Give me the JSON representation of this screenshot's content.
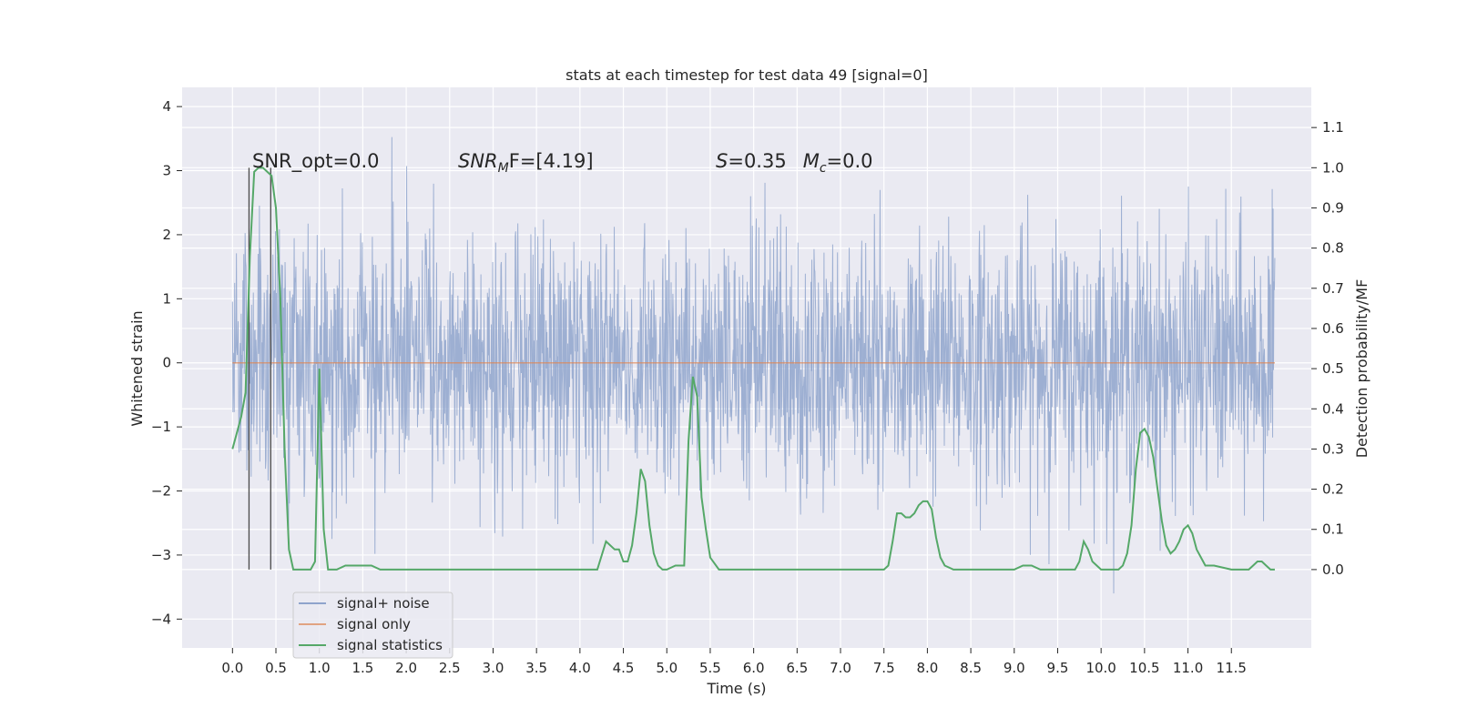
{
  "chart_data": {
    "type": "line",
    "title": "stats at each timestep for test data 49 [signal=0]",
    "xlabel": "Time (s)",
    "ylabel_left": "Whitened strain",
    "ylabel_right": "Detection probability/MF",
    "xlim": [
      -0.58,
      12.42
    ],
    "ylim_left": [
      -4.45,
      4.3
    ],
    "ylim_right": [
      -0.195,
      1.2
    ],
    "grid": true,
    "legend_position": "lower-left",
    "x_ticks": [
      "0.0",
      "0.5",
      "1.0",
      "1.5",
      "2.0",
      "2.5",
      "3.0",
      "3.5",
      "4.0",
      "4.5",
      "5.0",
      "5.5",
      "6.0",
      "6.5",
      "7.0",
      "7.5",
      "8.0",
      "8.5",
      "9.0",
      "9.5",
      "10.0",
      "10.5",
      "11.0",
      "11.5"
    ],
    "y_ticks_left": [
      "4",
      "3",
      "2",
      "1",
      "0",
      "−1",
      "−2",
      "−3",
      "−4"
    ],
    "y_ticks_right": [
      "1.1",
      "1.0",
      "0.9",
      "0.8",
      "0.7",
      "0.6",
      "0.5",
      "0.4",
      "0.3",
      "0.2",
      "0.1",
      "0.0"
    ],
    "annotations": {
      "snr_opt": "SNR_opt=0.0",
      "snr_mf": "SNR",
      "snr_mf_sub": "M",
      "snr_mf_tail": "F=[4.19]",
      "s_label": "S",
      "s_value": "=0.35",
      "mc_label": "M",
      "mc_sub": "c",
      "mc_value": "=0.0"
    },
    "series": [
      {
        "name": "signal+ noise",
        "color": "#8fa4cc",
        "description_range": [
          -3.6,
          3.85
        ],
        "x_range": [
          0.0,
          12.0
        ],
        "amplitude_std": 1.0
      },
      {
        "name": "signal only",
        "color": "#dd8452",
        "x": [
          0.0,
          12.0
        ],
        "y": [
          0.0,
          0.0
        ]
      },
      {
        "name": "signal statistics",
        "color": "#55a868",
        "axis": "right",
        "x": [
          0.0,
          0.1,
          0.15,
          0.2,
          0.25,
          0.3,
          0.35,
          0.4,
          0.45,
          0.5,
          0.55,
          0.6,
          0.65,
          0.7,
          0.75,
          0.8,
          0.85,
          0.9,
          0.95,
          1.0,
          1.05,
          1.1,
          1.15,
          1.2,
          1.3,
          1.4,
          1.5,
          1.6,
          1.7,
          1.8,
          1.9,
          2.0,
          2.1,
          2.2,
          2.3,
          2.4,
          2.5,
          2.6,
          2.7,
          2.8,
          2.9,
          3.0,
          3.1,
          3.2,
          3.3,
          3.4,
          3.5,
          3.6,
          3.7,
          3.8,
          3.9,
          4.0,
          4.1,
          4.2,
          4.3,
          4.4,
          4.45,
          4.5,
          4.55,
          4.6,
          4.65,
          4.7,
          4.75,
          4.8,
          4.85,
          4.9,
          4.95,
          5.0,
          5.1,
          5.2,
          5.25,
          5.3,
          5.35,
          5.4,
          5.45,
          5.5,
          5.6,
          5.7,
          5.8,
          6.0,
          6.5,
          7.0,
          7.5,
          7.55,
          7.6,
          7.65,
          7.7,
          7.75,
          7.8,
          7.85,
          7.9,
          7.95,
          8.0,
          8.05,
          8.1,
          8.15,
          8.2,
          8.3,
          8.5,
          8.8,
          9.0,
          9.1,
          9.2,
          9.3,
          9.4,
          9.5,
          9.6,
          9.7,
          9.75,
          9.8,
          9.85,
          9.9,
          9.95,
          10.0,
          10.1,
          10.2,
          10.25,
          10.3,
          10.35,
          10.4,
          10.45,
          10.5,
          10.55,
          10.6,
          10.65,
          10.7,
          10.75,
          10.8,
          10.85,
          10.9,
          10.95,
          11.0,
          11.05,
          11.1,
          11.15,
          11.2,
          11.3,
          11.5,
          11.7,
          11.75,
          11.8,
          11.85,
          11.9,
          11.95,
          12.0
        ],
        "y": [
          0.3,
          0.38,
          0.44,
          0.78,
          0.99,
          1.0,
          1.0,
          0.99,
          0.98,
          0.9,
          0.68,
          0.3,
          0.05,
          0.0,
          0.0,
          0.0,
          0.0,
          0.0,
          0.02,
          0.5,
          0.1,
          0.0,
          0.0,
          0.0,
          0.01,
          0.01,
          0.01,
          0.01,
          0.0,
          0.0,
          0.0,
          0.0,
          0.0,
          0.0,
          0.0,
          0.0,
          0.0,
          0.0,
          0.0,
          0.0,
          0.0,
          0.0,
          0.0,
          0.0,
          0.0,
          0.0,
          0.0,
          0.0,
          0.0,
          0.0,
          0.0,
          0.0,
          0.0,
          0.0,
          0.07,
          0.05,
          0.05,
          0.02,
          0.02,
          0.06,
          0.14,
          0.25,
          0.22,
          0.11,
          0.04,
          0.01,
          0.0,
          0.0,
          0.01,
          0.01,
          0.32,
          0.48,
          0.43,
          0.18,
          0.1,
          0.03,
          0.0,
          0.0,
          0.0,
          0.0,
          0.0,
          0.0,
          0.0,
          0.01,
          0.07,
          0.14,
          0.14,
          0.13,
          0.13,
          0.14,
          0.16,
          0.17,
          0.17,
          0.15,
          0.08,
          0.03,
          0.01,
          0.0,
          0.0,
          0.0,
          0.0,
          0.01,
          0.01,
          0.0,
          0.0,
          0.0,
          0.0,
          0.0,
          0.02,
          0.07,
          0.05,
          0.02,
          0.01,
          0.0,
          0.0,
          0.0,
          0.01,
          0.04,
          0.11,
          0.25,
          0.34,
          0.35,
          0.33,
          0.28,
          0.2,
          0.12,
          0.06,
          0.04,
          0.05,
          0.07,
          0.1,
          0.11,
          0.09,
          0.05,
          0.03,
          0.01,
          0.01,
          0.0,
          0.0,
          0.01,
          0.02,
          0.02,
          0.01,
          0.0,
          0.0
        ],
        "_y_note": "right-axis values"
      }
    ],
    "vlines": [
      0.19,
      0.44
    ]
  },
  "colors": {
    "plot_bg": "#eaeaf2",
    "grid": "#ffffff",
    "vline": "#4a4a4a"
  }
}
